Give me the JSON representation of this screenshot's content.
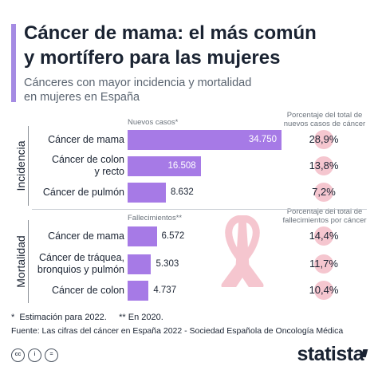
{
  "title": "Cáncer de mama: el más común\ny mortífero para las mujeres",
  "subtitle": "Cánceres con mayor incidencia y mortalidad\nen mujeres en España",
  "chart_data": {
    "type": "bar",
    "sections": [
      {
        "name": "Incidencia",
        "value_header": "Nuevos casos*",
        "pct_header": "Porcentaje del total de nuevos casos de cáncer",
        "categories": [
          "Cáncer de mama",
          "Cáncer de colon\ny recto",
          "Cáncer de pulmón"
        ],
        "values": [
          34750,
          16508,
          8632
        ],
        "value_labels": [
          "34.750",
          "16.508",
          "8.632"
        ],
        "percentages": [
          "28,9%",
          "13,8%",
          "7,2%"
        ],
        "xlim": [
          0,
          36000
        ]
      },
      {
        "name": "Mortalidad",
        "value_header": "Fallecimientos**",
        "pct_header": "Porcentaje del total de fallecimientos por cáncer",
        "categories": [
          "Cáncer de mama",
          "Cáncer de tráquea,\nbronquios y pulmón",
          "Cáncer de colon"
        ],
        "values": [
          6572,
          5303,
          4737
        ],
        "value_labels": [
          "6.572",
          "5.303",
          "4.737"
        ],
        "percentages": [
          "14,4%",
          "11,7%",
          "10,4%"
        ],
        "xlim": [
          0,
          36000
        ]
      }
    ]
  },
  "footnotes": {
    "line1": "*  Estimación para 2022.     ** En 2020.",
    "source": "Fuente: Las cifras del cáncer en España 2022 - Sociedad Española de Oncología Médica"
  },
  "brand": "statista",
  "colors": {
    "bar": "#a67ae6",
    "accent": "#a58be3",
    "circle": "#f5c6cf",
    "ribbon": "#f5c6cf"
  },
  "icons": [
    "cc-icon",
    "attribution-icon",
    "equals-icon"
  ]
}
